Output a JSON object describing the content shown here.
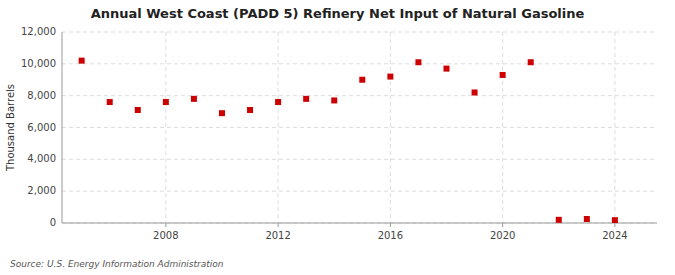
{
  "chart_data": {
    "type": "scatter",
    "title": "Annual West Coast (PADD 5) Refinery Net Input of Natural Gasoline",
    "y_label": "Thousand Barrels",
    "source": "Source: U.S. Energy Information Administration",
    "x": [
      2005,
      2006,
      2007,
      2008,
      2009,
      2010,
      2011,
      2012,
      2013,
      2014,
      2015,
      2016,
      2017,
      2018,
      2019,
      2020,
      2021,
      2022,
      2023,
      2024
    ],
    "values": [
      10200,
      7600,
      7100,
      7600,
      7800,
      6900,
      7100,
      7600,
      7800,
      7700,
      9000,
      9200,
      10100,
      9700,
      8200,
      9300,
      10100,
      200,
      250,
      175
    ],
    "color": "#cc0000",
    "marker": "square",
    "xlim": [
      2004.3,
      2025.5
    ],
    "xticks": [
      2008,
      2012,
      2016,
      2020,
      2024
    ],
    "ylim": [
      0,
      12000
    ],
    "yticks": [
      0,
      {
        "value": 2000,
        "label": "2,000"
      },
      {
        "value": 4000,
        "label": "4,000"
      },
      {
        "value": 6000,
        "label": "6,000"
      },
      {
        "value": 8000,
        "label": "8,000"
      },
      {
        "value": 10000,
        "label": "10,000"
      },
      {
        "value": 12000,
        "label": "12,000"
      }
    ],
    "grid": true
  }
}
